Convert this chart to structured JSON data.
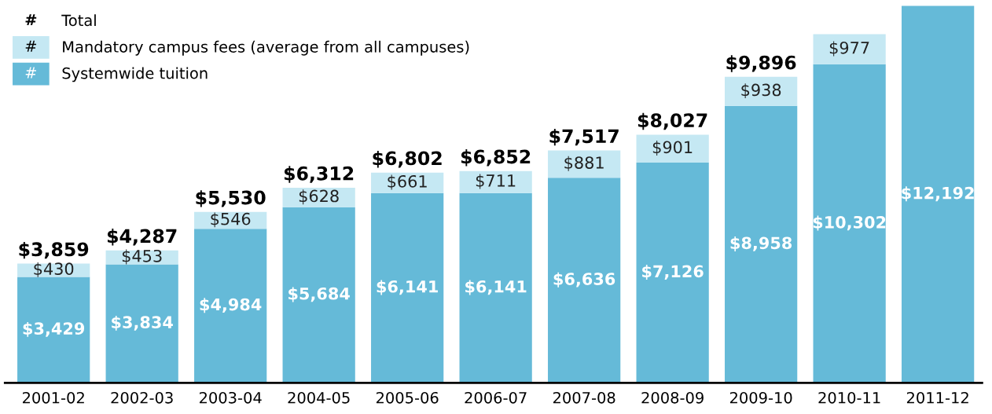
{
  "chart_data": {
    "type": "bar",
    "stacked": true,
    "legend": "top left",
    "categories": [
      "2001-02",
      "2002-03",
      "2003-04",
      "2004-05",
      "2005-06",
      "2006-07",
      "2007-08",
      "2008-09",
      "2009-10",
      "2010-11",
      "2011-12"
    ],
    "series": [
      {
        "name": "Systemwide tuition",
        "color": "#65bad8",
        "values": [
          3429,
          3834,
          4984,
          5684,
          6141,
          6141,
          6636,
          7126,
          8958,
          10302,
          12192
        ],
        "value_labels": [
          "$3,429",
          "$3,834",
          "$4,984",
          "$5,684",
          "$6,141",
          "$6,141",
          "$6,636",
          "$7,126",
          "$8,958",
          "$10,302",
          "$12,192"
        ]
      },
      {
        "name": "Mandatory campus fees (average from all campuses)",
        "color": "#c5e8f3",
        "values": [
          430,
          453,
          546,
          628,
          661,
          711,
          881,
          901,
          938,
          977,
          null
        ],
        "value_labels": [
          "$430",
          "$453",
          "$546",
          "$628",
          "$661",
          "$711",
          "$881",
          "$901",
          "$938",
          "$977",
          null
        ]
      }
    ],
    "totals": [
      "$3,859",
      "$4,287",
      "$5,530",
      "$6,312",
      "$6,802",
      "$6,852",
      "$7,517",
      "$8,027",
      "$9,896",
      null,
      null
    ],
    "annotations": [
      "Total",
      "#",
      "#",
      "#"
    ]
  }
}
